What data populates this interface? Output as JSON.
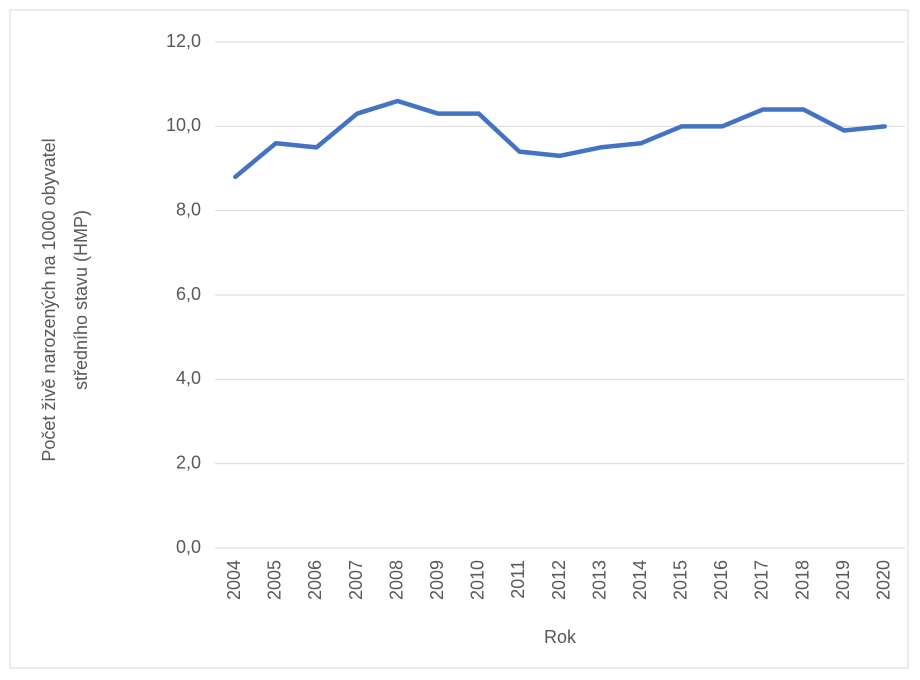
{
  "chart_data": {
    "type": "line",
    "xlabel": "Rok",
    "ylabel": [
      "Počet živě narozených na 1000 obyvatel",
      "středního stavu (HMP)"
    ],
    "categories": [
      "2004",
      "2005",
      "2006",
      "2007",
      "2008",
      "2009",
      "2010",
      "2011",
      "2012",
      "2013",
      "2014",
      "2015",
      "2016",
      "2017",
      "2018",
      "2019",
      "2020"
    ],
    "values": [
      8.8,
      9.6,
      9.5,
      10.3,
      10.6,
      10.3,
      10.3,
      9.4,
      9.3,
      9.5,
      9.6,
      10.0,
      10.0,
      10.4,
      10.4,
      9.9,
      10.0
    ],
    "color": "#4472c4",
    "ylim": [
      0,
      12
    ],
    "yticks": [
      {
        "value": 0,
        "label": "0,0"
      },
      {
        "value": 2,
        "label": "2,0"
      },
      {
        "value": 4,
        "label": "4,0"
      },
      {
        "value": 6,
        "label": "6,0"
      },
      {
        "value": 8,
        "label": "8,0"
      },
      {
        "value": 10,
        "label": "10,0"
      },
      {
        "value": 12,
        "label": "12,0"
      }
    ],
    "grid": true
  }
}
